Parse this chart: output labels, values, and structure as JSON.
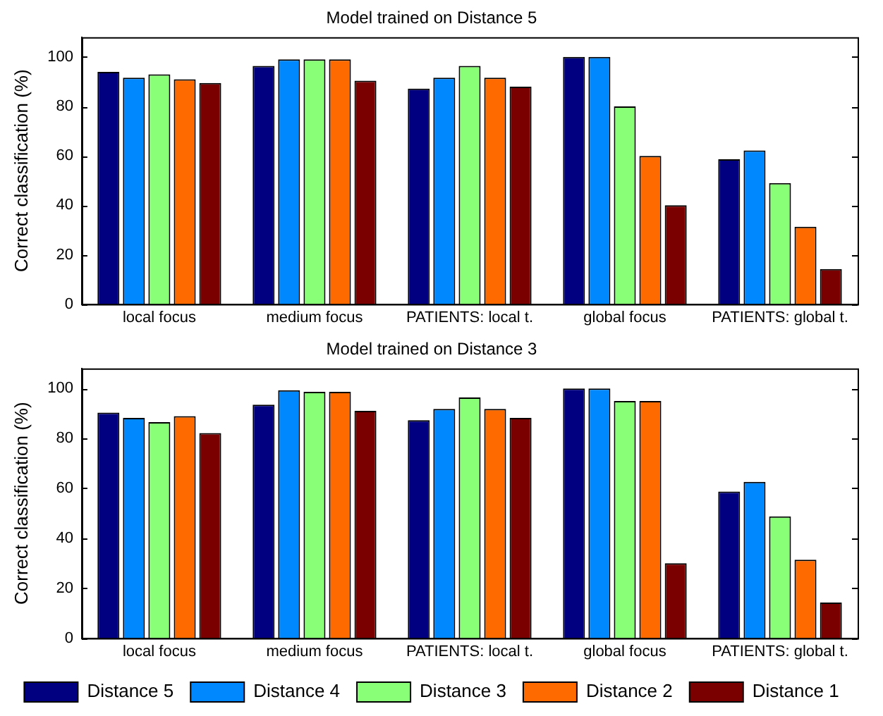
{
  "chart_data": [
    {
      "type": "bar",
      "title": "Model trained on Distance 5",
      "ylabel": "Correct classification (%)",
      "categories": [
        "local focus",
        "medium focus",
        "PATIENTS: local t.",
        "global focus",
        "PATIENTS: global t."
      ],
      "series": [
        {
          "color": "#000080",
          "values": [
            94,
            96.4,
            87.2,
            100,
            58.6
          ]
        },
        {
          "color": "#0088ff",
          "values": [
            91.6,
            99,
            91.6,
            100,
            62.2
          ]
        },
        {
          "color": "#88ff77",
          "values": [
            93,
            99,
            96.4,
            80,
            49
          ]
        },
        {
          "color": "#ff6a00",
          "values": [
            91,
            99,
            91.6,
            60,
            31.3
          ]
        },
        {
          "color": "#7a0000",
          "values": [
            89.5,
            90.4,
            88,
            40,
            14.2
          ]
        }
      ],
      "ylim": [
        0,
        108
      ],
      "yticks": [
        0,
        20,
        40,
        60,
        80,
        100
      ],
      "grid": false
    },
    {
      "type": "bar",
      "title": "Model trained on Distance 3",
      "ylabel": "Correct classification (%)",
      "categories": [
        "local focus",
        "medium focus",
        "PATIENTS: local t.",
        "global focus",
        "PATIENTS: global t."
      ],
      "series": [
        {
          "name": "Distance 5",
          "color": "#000080",
          "values": [
            90.3,
            93.5,
            87.3,
            100,
            58.7
          ]
        },
        {
          "name": "Distance 4",
          "color": "#0088ff",
          "values": [
            88.2,
            99.3,
            91.8,
            100,
            62.6
          ]
        },
        {
          "name": "Distance 3",
          "color": "#88ff77",
          "values": [
            86.5,
            98.6,
            96.4,
            95,
            48.8
          ]
        },
        {
          "name": "Distance 2",
          "color": "#ff6a00",
          "values": [
            88.9,
            98.6,
            91.8,
            95,
            31.4
          ]
        },
        {
          "name": "Distance 1",
          "color": "#7a0000",
          "values": [
            82.1,
            91,
            88.2,
            30,
            14.3
          ]
        }
      ],
      "ylim": [
        0,
        108
      ],
      "yticks": [
        0,
        20,
        40,
        60,
        80,
        100
      ],
      "grid": false,
      "legend": "bottom"
    }
  ]
}
